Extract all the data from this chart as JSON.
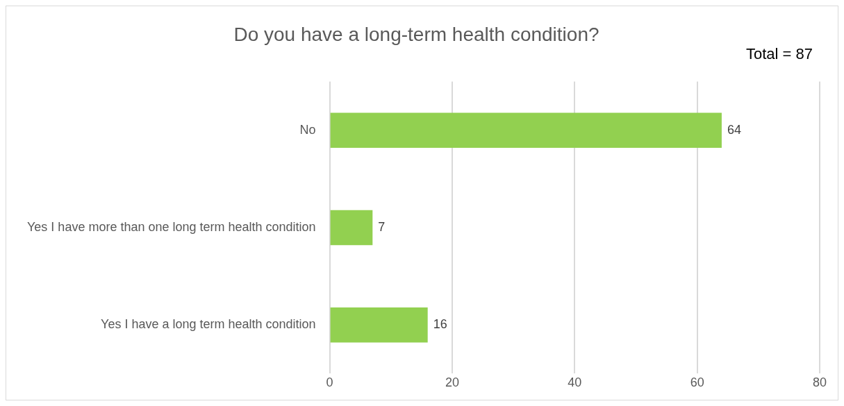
{
  "chart_data": {
    "type": "bar",
    "orientation": "horizontal",
    "title": "Do you have a long-term health condition?",
    "annotations": [
      "Total = 87"
    ],
    "categories": [
      "No",
      "Yes I have more than one long term health condition",
      "Yes I have a long term health condition"
    ],
    "values": [
      64,
      7,
      16
    ],
    "color": "#92d050",
    "xlim": [
      0,
      80
    ],
    "xticks": [
      0,
      20,
      40,
      60,
      80
    ],
    "grid": "x",
    "data_labels": true
  }
}
